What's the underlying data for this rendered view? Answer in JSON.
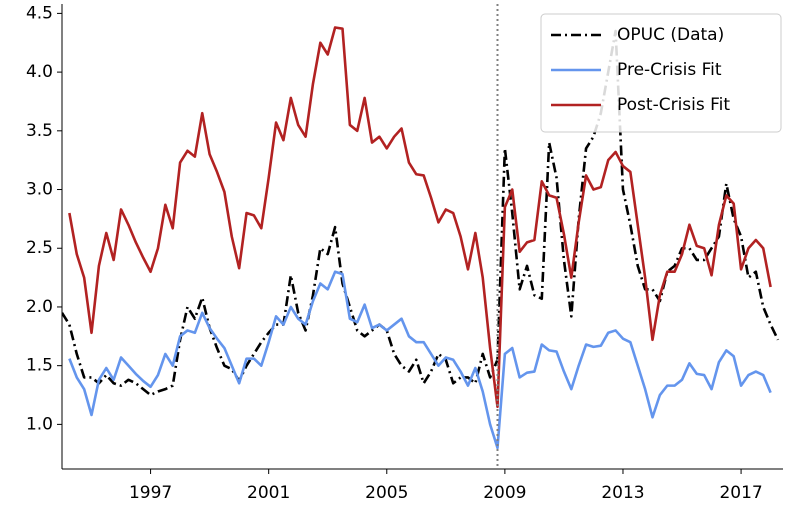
{
  "chart_data": {
    "type": "line",
    "x": [
      1994.0,
      1994.25,
      1994.5,
      1994.75,
      1995.0,
      1995.25,
      1995.5,
      1995.75,
      1996.0,
      1996.25,
      1996.5,
      1996.75,
      1997.0,
      1997.25,
      1997.5,
      1997.75,
      1998.0,
      1998.25,
      1998.5,
      1998.75,
      1999.0,
      1999.25,
      1999.5,
      1999.75,
      2000.0,
      2000.25,
      2000.5,
      2000.75,
      2001.0,
      2001.25,
      2001.5,
      2001.75,
      2002.0,
      2002.25,
      2002.5,
      2002.75,
      2003.0,
      2003.25,
      2003.5,
      2003.75,
      2004.0,
      2004.25,
      2004.5,
      2004.75,
      2005.0,
      2005.25,
      2005.5,
      2005.75,
      2006.0,
      2006.25,
      2006.5,
      2006.75,
      2007.0,
      2007.25,
      2007.5,
      2007.75,
      2008.0,
      2008.25,
      2008.5,
      2008.75,
      2009.0,
      2009.25,
      2009.5,
      2009.75,
      2010.0,
      2010.25,
      2010.5,
      2010.75,
      2011.0,
      2011.25,
      2011.5,
      2011.75,
      2012.0,
      2012.25,
      2012.5,
      2012.75,
      2013.0,
      2013.25,
      2013.5,
      2013.75,
      2014.0,
      2014.25,
      2014.5,
      2014.75,
      2015.0,
      2015.25,
      2015.5,
      2015.75,
      2016.0,
      2016.25,
      2016.5,
      2016.75,
      2017.0,
      2017.25,
      2017.5,
      2017.75,
      2018.0,
      2018.25
    ],
    "series": [
      {
        "name": "OPUC (Data)",
        "color": "#000000",
        "linestyle": "dashdot",
        "values": [
          1.95,
          1.85,
          1.6,
          1.4,
          1.4,
          1.35,
          1.42,
          1.35,
          1.33,
          1.38,
          1.35,
          1.3,
          1.25,
          1.28,
          1.3,
          1.33,
          1.72,
          2.0,
          1.9,
          2.08,
          1.82,
          1.65,
          1.5,
          1.47,
          1.37,
          1.5,
          1.6,
          1.7,
          1.78,
          1.85,
          1.85,
          2.27,
          1.95,
          1.8,
          2.1,
          2.5,
          2.45,
          2.68,
          2.2,
          2.0,
          1.8,
          1.75,
          1.8,
          1.85,
          1.8,
          1.6,
          1.5,
          1.45,
          1.55,
          1.35,
          1.45,
          1.6,
          1.55,
          1.35,
          1.4,
          1.4,
          1.35,
          1.6,
          1.4,
          1.55,
          3.35,
          2.8,
          2.15,
          2.35,
          2.1,
          2.07,
          3.4,
          3.1,
          2.4,
          1.92,
          2.75,
          3.35,
          3.45,
          3.65,
          4.0,
          4.35,
          3.0,
          2.7,
          2.35,
          2.15,
          2.15,
          2.05,
          2.3,
          2.35,
          2.5,
          2.5,
          2.4,
          2.4,
          2.5,
          2.6,
          3.05,
          2.75,
          2.6,
          2.25,
          2.3,
          2.0,
          1.85,
          1.72
        ]
      },
      {
        "name": "Pre-Crisis Fit",
        "color": "#6495ed",
        "linestyle": "solid",
        "values": [
          null,
          1.56,
          1.4,
          1.3,
          1.08,
          1.38,
          1.48,
          1.38,
          1.57,
          1.5,
          1.43,
          1.37,
          1.32,
          1.42,
          1.6,
          1.5,
          1.75,
          1.8,
          1.78,
          1.95,
          1.82,
          1.73,
          1.65,
          1.5,
          1.35,
          1.56,
          1.56,
          1.5,
          1.7,
          1.92,
          1.85,
          2.0,
          1.9,
          1.85,
          2.05,
          2.2,
          2.15,
          2.3,
          2.28,
          1.9,
          1.87,
          2.02,
          1.82,
          1.85,
          1.8,
          1.85,
          1.9,
          1.75,
          1.7,
          1.7,
          1.6,
          1.5,
          1.57,
          1.55,
          1.45,
          1.33,
          1.48,
          1.28,
          1.0,
          0.8,
          1.6,
          1.65,
          1.4,
          1.44,
          1.45,
          1.68,
          1.63,
          1.62,
          1.45,
          1.3,
          1.5,
          1.68,
          1.66,
          1.67,
          1.78,
          1.8,
          1.73,
          1.7,
          1.5,
          1.3,
          1.06,
          1.25,
          1.33,
          1.33,
          1.38,
          1.52,
          1.43,
          1.42,
          1.3,
          1.53,
          1.63,
          1.58,
          1.33,
          1.42,
          1.45,
          1.42,
          1.27,
          null
        ]
      },
      {
        "name": "Post-Crisis Fit",
        "color": "#b22222",
        "linestyle": "solid",
        "values": [
          null,
          2.8,
          2.45,
          2.25,
          1.78,
          2.35,
          2.63,
          2.4,
          2.83,
          2.7,
          2.55,
          2.42,
          2.3,
          2.5,
          2.87,
          2.67,
          3.23,
          3.33,
          3.28,
          3.65,
          3.3,
          3.15,
          2.98,
          2.6,
          2.33,
          2.8,
          2.78,
          2.67,
          3.1,
          3.57,
          3.42,
          3.78,
          3.55,
          3.45,
          3.9,
          4.25,
          4.15,
          4.38,
          4.37,
          3.55,
          3.5,
          3.78,
          3.4,
          3.45,
          3.35,
          3.45,
          3.52,
          3.23,
          3.13,
          3.12,
          2.93,
          2.72,
          2.83,
          2.8,
          2.6,
          2.32,
          2.63,
          2.25,
          1.65,
          1.15,
          2.85,
          3.0,
          2.47,
          2.55,
          2.57,
          3.07,
          2.95,
          2.93,
          2.62,
          2.25,
          2.72,
          3.12,
          3.0,
          3.02,
          3.25,
          3.32,
          3.2,
          3.15,
          2.7,
          2.25,
          1.72,
          2.1,
          2.3,
          2.3,
          2.45,
          2.7,
          2.52,
          2.5,
          2.27,
          2.7,
          2.95,
          2.88,
          2.32,
          2.5,
          2.57,
          2.5,
          2.17,
          null
        ]
      }
    ],
    "vline": 2008.75,
    "xlim": [
      1994,
      2018.42
    ],
    "ylim": [
      0.62,
      4.58
    ],
    "xticks": [
      1997,
      2001,
      2005,
      2009,
      2013,
      2017
    ],
    "yticks": [
      {
        "value": 1,
        "label": "1.0"
      },
      {
        "value": 1.5,
        "label": "1.5"
      },
      {
        "value": 2,
        "label": "2.0"
      },
      {
        "value": 2.5,
        "label": "2.5"
      },
      {
        "value": 3,
        "label": "3.0"
      },
      {
        "value": 3.5,
        "label": "3.5"
      },
      {
        "value": 4,
        "label": "4.0"
      },
      {
        "value": 4.5,
        "label": "4.5"
      }
    ],
    "legend": "upper right"
  }
}
